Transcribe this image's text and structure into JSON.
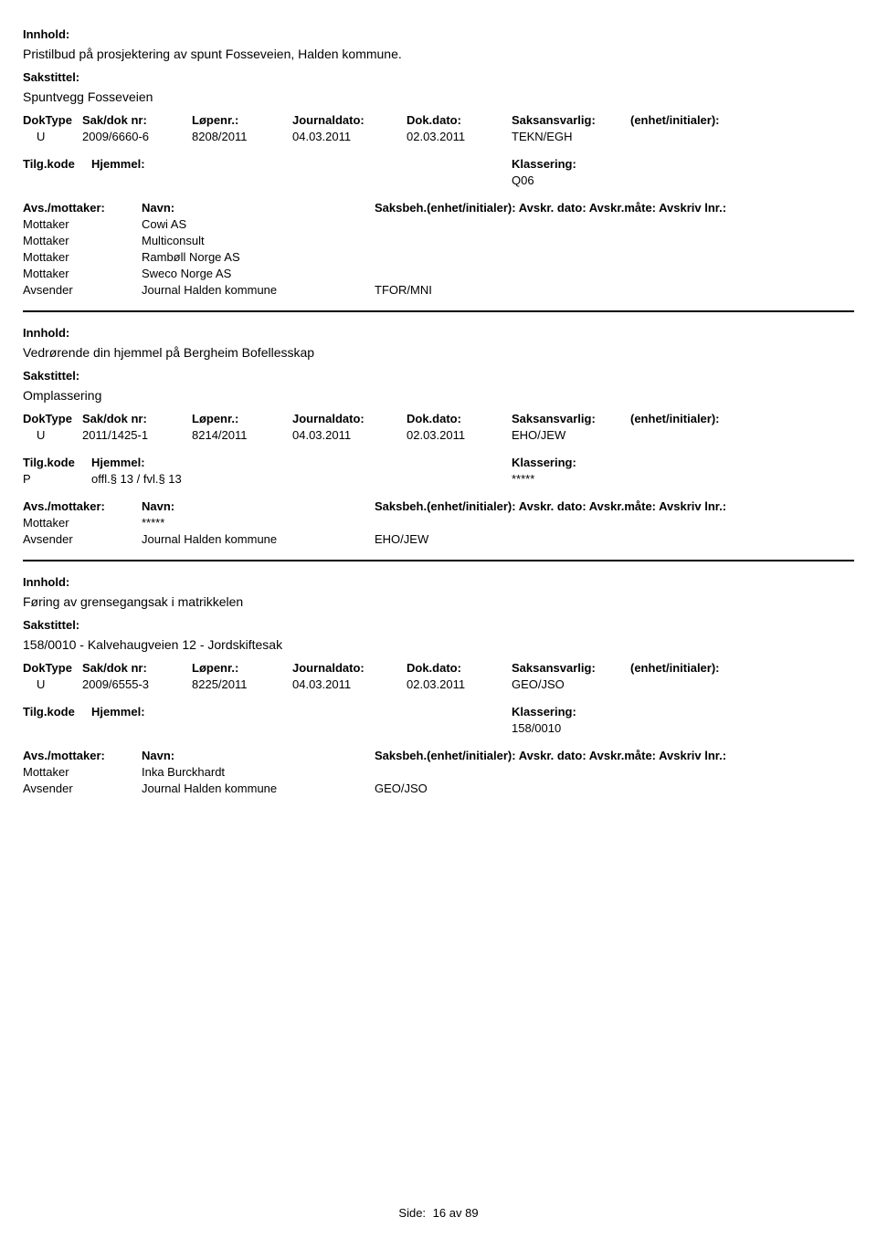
{
  "labels": {
    "innhold": "Innhold:",
    "sakstittel": "Sakstittel:",
    "doktype": "DokType",
    "sakdoknr": "Sak/dok nr:",
    "lopenr": "Løpenr.:",
    "journaldato": "Journaldato:",
    "dokdato": "Dok.dato:",
    "saksansvarlig": "Saksansvarlig:",
    "enhet": "(enhet/initialer):",
    "tilgkode": "Tilg.kode",
    "hjemmel": "Hjemmel:",
    "klassering": "Klassering:",
    "avsmottaker": "Avs./mottaker:",
    "navn": "Navn:",
    "saksbeh": "Saksbeh.(enhet/initialer):",
    "avskr": "Avskr. dato:",
    "avskrmate": "Avskr.måte:",
    "avskrivlnr": "Avskriv lnr.:",
    "mottaker": "Mottaker",
    "avsender": "Avsender",
    "side": "Side:",
    "av": "av"
  },
  "records": [
    {
      "innhold": "Pristilbud på prosjektering av spunt Fosseveien, Halden kommune.",
      "sakstittel": "Spuntvegg Fosseveien",
      "doktype": "U",
      "sakdoknr": "2009/6660-6",
      "lopenr": "8208/2011",
      "journaldato": "04.03.2011",
      "dokdato": "02.03.2011",
      "saksansvarlig": "TEKN/EGH",
      "tilgkode": "",
      "hjemmel": "",
      "klassering": "Q06",
      "mottakere": [
        "Cowi AS",
        "Multiconsult",
        "Rambøll Norge AS",
        "Sweco Norge AS"
      ],
      "avsender": "Journal Halden kommune",
      "avsender_code": "TFOR/MNI",
      "mottaker_star": false
    },
    {
      "innhold": "Vedrørende din hjemmel på Bergheim Bofellesskap",
      "sakstittel": "Omplassering",
      "doktype": "U",
      "sakdoknr": "2011/1425-1",
      "lopenr": "8214/2011",
      "journaldato": "04.03.2011",
      "dokdato": "02.03.2011",
      "saksansvarlig": "EHO/JEW",
      "tilgkode": "P",
      "hjemmel": "offl.§ 13 / fvl.§ 13",
      "klassering": "*****",
      "mottakere": [
        "*****"
      ],
      "avsender": "Journal Halden kommune",
      "avsender_code": "EHO/JEW",
      "mottaker_star": false
    },
    {
      "innhold": "Føring av grensegangsak i matrikkelen",
      "sakstittel": "158/0010 - Kalvehaugveien 12 - Jordskiftesak",
      "doktype": "U",
      "sakdoknr": "2009/6555-3",
      "lopenr": "8225/2011",
      "journaldato": "04.03.2011",
      "dokdato": "02.03.2011",
      "saksansvarlig": "GEO/JSO",
      "tilgkode": "",
      "hjemmel": "",
      "klassering": "158/0010",
      "mottakere": [
        "Inka Burckhardt"
      ],
      "avsender": "Journal Halden kommune",
      "avsender_code": "GEO/JSO",
      "mottaker_star": false
    }
  ],
  "footer": {
    "page": "16",
    "total": "89"
  }
}
